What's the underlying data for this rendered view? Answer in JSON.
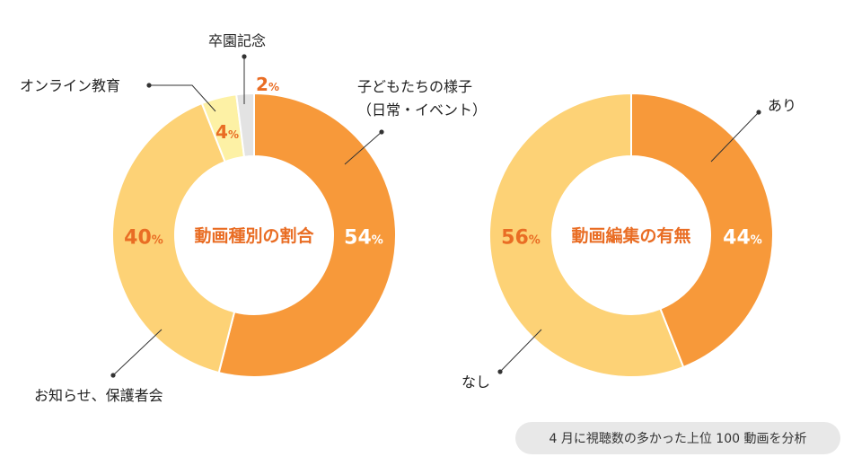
{
  "chart_data": [
    {
      "type": "pie",
      "title": "動画種別の割合",
      "categories": [
        "子どもたちの様子（日常・イベント）",
        "お知らせ、保護者会",
        "オンライン教育",
        "卒園記念"
      ],
      "label_lines": [
        [
          "子どもたちの様子",
          "（日常・イベント）"
        ],
        [
          "お知らせ、保護者会"
        ],
        [
          "オンライン教育"
        ],
        [
          "卒園記念"
        ]
      ],
      "values": [
        54,
        40,
        4,
        2
      ],
      "value_labels": [
        "54",
        "40",
        "4",
        "2"
      ],
      "unit": "%",
      "colors": [
        "#f7993a",
        "#fdd276",
        "#fdf1a5",
        "#e3e3e3"
      ]
    },
    {
      "type": "pie",
      "title": "動画編集の有無",
      "categories": [
        "あり",
        "なし"
      ],
      "label_lines": [
        [
          "あり"
        ],
        [
          "なし"
        ]
      ],
      "values": [
        44,
        56
      ],
      "value_labels": [
        "44",
        "56"
      ],
      "unit": "%",
      "colors": [
        "#f7993a",
        "#fdd276"
      ]
    }
  ],
  "footnote": "4 月に視聴数の多かった上位 100 動画を分析"
}
